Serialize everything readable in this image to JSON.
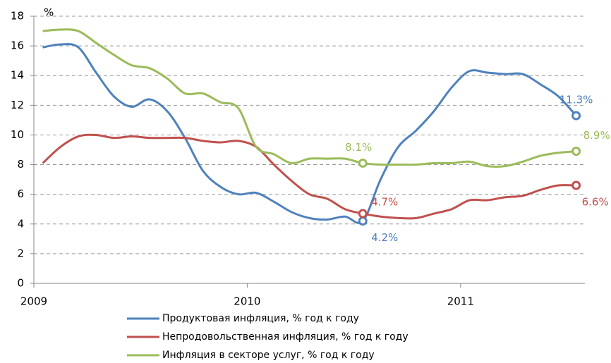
{
  "chart_data": {
    "type": "line",
    "y_unit_label": "%",
    "categories": [
      "2009",
      null,
      null,
      null,
      null,
      null,
      null,
      null,
      null,
      null,
      null,
      null,
      "2010",
      null,
      null,
      null,
      null,
      null,
      null,
      null,
      null,
      null,
      null,
      null,
      "2011",
      null,
      null,
      null,
      null,
      null,
      null
    ],
    "series": [
      {
        "name": "Продуктовая инфляция, % год к году",
        "color": "#4f81bd",
        "values": [
          15.9,
          16.1,
          15.9,
          14.2,
          12.6,
          11.9,
          12.4,
          11.6,
          9.8,
          7.6,
          6.5,
          6.0,
          6.1,
          5.5,
          4.8,
          4.4,
          4.3,
          4.5,
          4.2,
          7.0,
          9.2,
          10.3,
          11.6,
          13.2,
          14.3,
          14.2,
          14.1,
          14.1,
          13.4,
          12.6,
          11.3
        ],
        "value_labels": [
          null,
          null,
          null,
          null,
          null,
          null,
          null,
          null,
          null,
          null,
          null,
          null,
          null,
          null,
          null,
          null,
          null,
          null,
          "4.2%",
          null,
          null,
          null,
          null,
          null,
          null,
          null,
          null,
          null,
          null,
          null,
          "11.3%"
        ]
      },
      {
        "name": "Непродовольственная инфляция, % год к году",
        "color": "#c0504d",
        "values": [
          8.1,
          9.2,
          9.9,
          10.0,
          9.8,
          9.9,
          9.8,
          9.8,
          9.8,
          9.6,
          9.5,
          9.6,
          9.2,
          8.0,
          6.9,
          6.0,
          5.7,
          5.0,
          4.7,
          4.5,
          4.4,
          4.4,
          4.7,
          5.0,
          5.6,
          5.6,
          5.8,
          5.9,
          6.3,
          6.6,
          6.6
        ],
        "value_labels": [
          null,
          null,
          null,
          null,
          null,
          null,
          null,
          null,
          null,
          null,
          null,
          null,
          null,
          null,
          null,
          null,
          null,
          null,
          "4.7%",
          null,
          null,
          null,
          null,
          null,
          null,
          null,
          null,
          null,
          null,
          null,
          "6.6%"
        ]
      },
      {
        "name": "Инфляция в секторе услуг, % год к году",
        "color": "#9bbb59",
        "values": [
          17.0,
          17.1,
          17.0,
          16.2,
          15.4,
          14.7,
          14.5,
          13.8,
          12.8,
          12.8,
          12.2,
          11.8,
          9.2,
          8.7,
          8.1,
          8.4,
          8.4,
          8.4,
          8.1,
          8.0,
          8.0,
          8.0,
          8.1,
          8.1,
          8.2,
          7.9,
          7.9,
          8.2,
          8.6,
          8.8,
          8.9
        ],
        "value_labels": [
          null,
          null,
          null,
          null,
          null,
          null,
          null,
          null,
          null,
          null,
          null,
          null,
          null,
          null,
          null,
          null,
          null,
          null,
          "8.1%",
          null,
          null,
          null,
          null,
          null,
          null,
          null,
          null,
          null,
          null,
          null,
          "8.9%"
        ]
      }
    ],
    "ylim": [
      0,
      18
    ],
    "yticks": [
      0,
      2,
      4,
      6,
      8,
      10,
      12,
      14,
      16,
      18
    ],
    "grid": true,
    "legend": "bottom"
  }
}
